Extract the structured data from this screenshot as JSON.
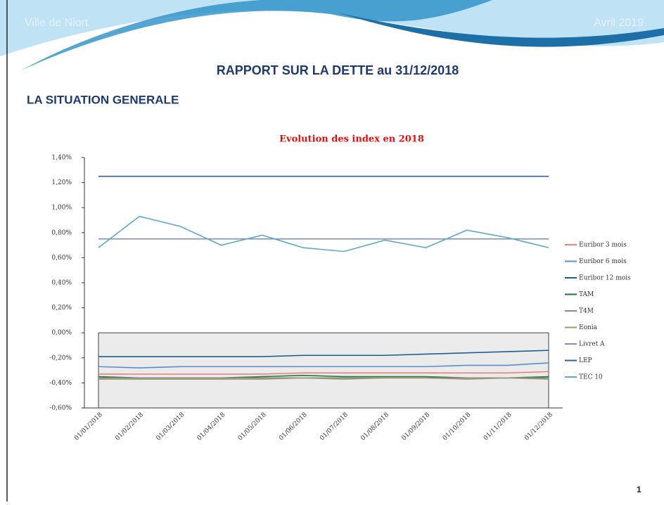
{
  "header": {
    "left": "Ville de Niort",
    "right": "Avril 2019",
    "title": "RAPPORT SUR LA DETTE au 31/12/2018",
    "section": "LA SITUATION GENERALE",
    "page_number": "1"
  },
  "chart_data": {
    "type": "line",
    "title": "Evolution des index en 2018",
    "categories": [
      "01/01/2018",
      "01/02/2018",
      "01/03/2018",
      "01/04/2018",
      "01/05/2018",
      "01/06/2018",
      "01/07/2018",
      "01/08/2018",
      "01/09/2018",
      "01/10/2018",
      "01/11/2018",
      "01/12/2018"
    ],
    "ylim": [
      -0.6,
      1.4
    ],
    "yticks": [
      {
        "value": 1.4,
        "label": "1,40%"
      },
      {
        "value": 1.2,
        "label": "1,20%"
      },
      {
        "value": 1.0,
        "label": "1,00%"
      },
      {
        "value": 0.8,
        "label": "0,80%"
      },
      {
        "value": 0.6,
        "label": "0,60%"
      },
      {
        "value": 0.4,
        "label": "0,40%"
      },
      {
        "value": 0.2,
        "label": "0,20%"
      },
      {
        "value": 0,
        "label": "0,00%"
      },
      {
        "value": -0.2,
        "label": "-0,20%"
      },
      {
        "value": -0.4,
        "label": "-0,40%"
      },
      {
        "value": -0.6,
        "label": "-0,60%"
      }
    ],
    "legend": "right",
    "series": [
      {
        "name": "Euribor 3 mois",
        "color": "#f08080",
        "values": [
          -0.33,
          -0.33,
          -0.33,
          -0.33,
          -0.33,
          -0.32,
          -0.32,
          -0.32,
          -0.32,
          -0.32,
          -0.32,
          -0.31
        ]
      },
      {
        "name": "Euribor 6 mois",
        "color": "#5b8fc7",
        "values": [
          -0.27,
          -0.28,
          -0.27,
          -0.27,
          -0.27,
          -0.27,
          -0.27,
          -0.27,
          -0.27,
          -0.26,
          -0.26,
          -0.24
        ]
      },
      {
        "name": "Euribor 12 mois",
        "color": "#1f5f8b",
        "values": [
          -0.19,
          -0.19,
          -0.19,
          -0.19,
          -0.19,
          -0.18,
          -0.18,
          -0.18,
          -0.17,
          -0.16,
          -0.15,
          -0.14
        ]
      },
      {
        "name": "TAM",
        "color": "#1a7a3a",
        "values": [
          -0.35,
          -0.36,
          -0.36,
          -0.36,
          -0.35,
          -0.34,
          -0.35,
          -0.35,
          -0.35,
          -0.36,
          -0.36,
          -0.35
        ]
      },
      {
        "name": "T4M",
        "color": "#8a8a8a",
        "values": [
          -0.36,
          -0.36,
          -0.36,
          -0.36,
          -0.36,
          -0.36,
          -0.36,
          -0.36,
          -0.36,
          -0.36,
          -0.36,
          -0.36
        ]
      },
      {
        "name": "Eonia",
        "color": "#9a9a6a",
        "values": [
          -0.37,
          -0.37,
          -0.37,
          -0.37,
          -0.37,
          -0.36,
          -0.37,
          -0.36,
          -0.36,
          -0.37,
          -0.36,
          -0.37
        ]
      },
      {
        "name": "Livret A",
        "color": "#8090b0",
        "values": [
          0.75,
          0.75,
          0.75,
          0.75,
          0.75,
          0.75,
          0.75,
          0.75,
          0.75,
          0.75,
          0.75,
          0.75
        ]
      },
      {
        "name": "LEP",
        "color": "#3060a0",
        "values": [
          1.25,
          1.25,
          1.25,
          1.25,
          1.25,
          1.25,
          1.25,
          1.25,
          1.25,
          1.25,
          1.25,
          1.25
        ]
      },
      {
        "name": "TEC 10",
        "color": "#60a8c8",
        "values": [
          0.68,
          0.93,
          0.85,
          0.7,
          0.78,
          0.68,
          0.65,
          0.74,
          0.68,
          0.82,
          0.76,
          0.68
        ]
      }
    ]
  }
}
